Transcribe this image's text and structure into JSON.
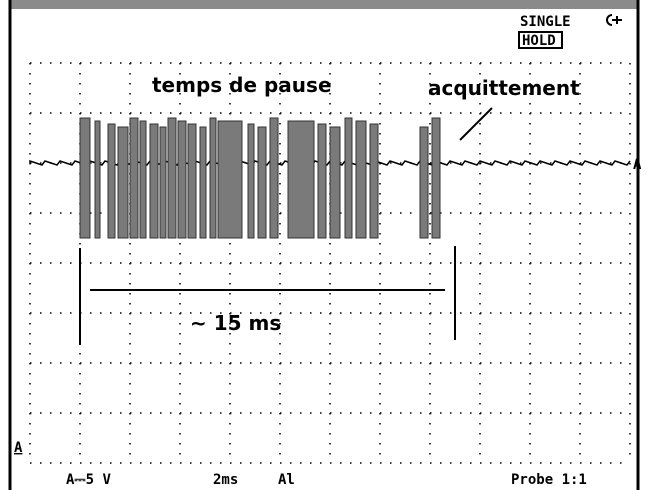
{
  "header": {
    "mode": "SINGLE",
    "hold": "HOLD"
  },
  "annotations": {
    "pause": "temps de pause",
    "ack": "acquittement",
    "duration": "∼ 15 ms"
  },
  "markers": {
    "trace": "A",
    "ground": "A"
  },
  "footer": {
    "range": "A⎓5 V",
    "timebase": "2ms",
    "trigger": "Al",
    "probe": "Probe 1:1"
  }
}
